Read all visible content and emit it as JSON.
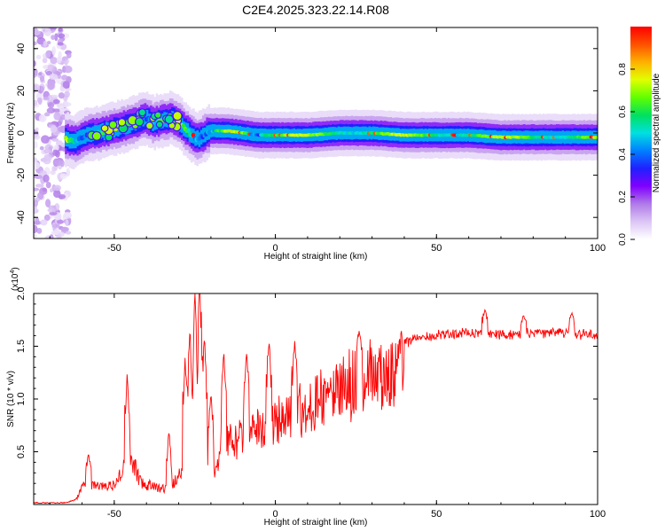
{
  "title": "C2E4.2025.323.22.14.R08",
  "chart_data": [
    {
      "type": "heatmap",
      "xlabel": "Height of straight line (km)",
      "ylabel": "Frequency (Hz)",
      "xlim": [
        -75,
        100
      ],
      "ylim": [
        -50,
        50
      ],
      "xticks": [
        -50,
        0,
        50,
        100
      ],
      "yticks": [
        -40,
        -20,
        0,
        20,
        40
      ],
      "grid": false,
      "colorbar": {
        "label": "Normalized spectral amplitude",
        "range": [
          0,
          1
        ],
        "ticks": [
          0.0,
          0.2,
          0.4,
          0.6,
          0.8
        ],
        "colormap": [
          "#ffffff",
          "#dcc6f5",
          "#b07ae8",
          "#8000ff",
          "#2020ff",
          "#0080ff",
          "#00e0e0",
          "#00e060",
          "#60ff00",
          "#e0ff00",
          "#ffb000",
          "#ff5000",
          "#ff0000"
        ]
      },
      "ridge": {
        "x": [
          -65,
          -62,
          -60,
          -58,
          -55,
          -50,
          -45,
          -42,
          -40,
          -38,
          -35,
          -32,
          -30,
          -28,
          -26,
          -24,
          -22,
          -20,
          -15,
          -10,
          -5,
          0,
          10,
          20,
          30,
          40,
          50,
          60,
          70,
          80,
          90,
          100
        ],
        "y": [
          -3,
          -4,
          -2,
          -1,
          0,
          2,
          4,
          6,
          7,
          5,
          6,
          7,
          5,
          2,
          -1,
          -3,
          -1,
          1,
          1,
          0,
          -1,
          -1,
          -1,
          0,
          0,
          -1,
          -1,
          -1,
          -2,
          -2,
          -2,
          -2
        ]
      },
      "noise_region_x": [
        -75,
        -64
      ]
    },
    {
      "type": "line",
      "xlabel": "Height of straight line (km)",
      "ylabel": "SNR (10 * v/v)",
      "scale_label": "(x10",
      "scale_exp": "4",
      "scale_close": ")",
      "xlim": [
        -75,
        100
      ],
      "ylim": [
        0,
        2.0
      ],
      "xticks": [
        -50,
        0,
        50,
        100
      ],
      "yticks": [
        0.5,
        1.0,
        1.5,
        2.0
      ],
      "ytick_labels": [
        "0.5",
        "1.0",
        "1.5",
        "2.0"
      ],
      "series_color": "#ff0000",
      "envelope": {
        "x": [
          -75,
          -65,
          -62,
          -60,
          -58,
          -55,
          -50,
          -47,
          -45,
          -42,
          -40,
          -35,
          -33,
          -30,
          -28,
          -25,
          -23,
          -21,
          -19,
          -17,
          -15,
          -10,
          -5,
          0,
          5,
          10,
          15,
          20,
          25,
          30,
          35,
          40,
          45,
          50,
          55,
          60,
          65,
          70,
          75,
          80,
          85,
          90,
          95,
          100
        ],
        "y": [
          0.02,
          0.02,
          0.05,
          0.2,
          0.25,
          0.2,
          0.22,
          0.4,
          0.55,
          0.28,
          0.22,
          0.18,
          0.18,
          0.32,
          0.45,
          0.5,
          0.95,
          0.5,
          0.35,
          0.55,
          0.72,
          0.75,
          0.85,
          0.92,
          1.0,
          1.1,
          1.2,
          1.3,
          1.38,
          1.45,
          1.5,
          1.58,
          1.63,
          1.65,
          1.66,
          1.67,
          1.67,
          1.66,
          1.66,
          1.66,
          1.67,
          1.67,
          1.66,
          1.66
        ]
      },
      "spikes": [
        {
          "x": -58,
          "y": 0.48
        },
        {
          "x": -46,
          "y": 1.25
        },
        {
          "x": -33,
          "y": 0.7
        },
        {
          "x": -28,
          "y": 1.4
        },
        {
          "x": -26.5,
          "y": 1.7
        },
        {
          "x": -25,
          "y": 2.05
        },
        {
          "x": -23.5,
          "y": 2.1
        },
        {
          "x": -22,
          "y": 1.6
        },
        {
          "x": -20,
          "y": 1.05
        },
        {
          "x": -16,
          "y": 1.45
        },
        {
          "x": -9,
          "y": 1.45
        },
        {
          "x": -2,
          "y": 1.55
        },
        {
          "x": 6,
          "y": 1.55
        },
        {
          "x": 26,
          "y": 1.65
        },
        {
          "x": 65,
          "y": 1.85
        },
        {
          "x": 77,
          "y": 1.8
        },
        {
          "x": 92,
          "y": 1.82
        }
      ]
    }
  ]
}
